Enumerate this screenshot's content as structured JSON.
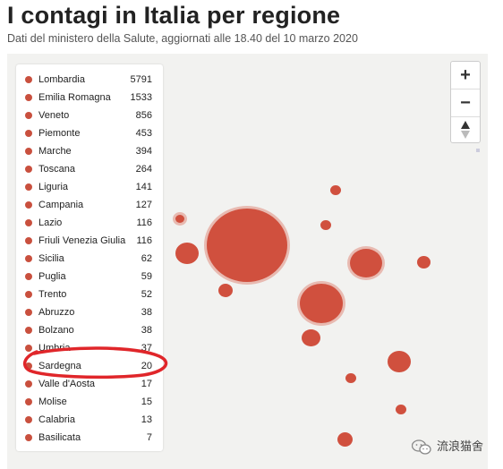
{
  "header": {
    "title": "I contagi in Italia per regione",
    "subtitle": "Dati del ministero della Salute, aggiornati alle 18.40 del 10 marzo 2020"
  },
  "legend": {
    "rows": [
      {
        "name": "Lombardia",
        "value": "5791"
      },
      {
        "name": "Emilia Romagna",
        "value": "1533"
      },
      {
        "name": "Veneto",
        "value": "856"
      },
      {
        "name": "Piemonte",
        "value": "453"
      },
      {
        "name": "Marche",
        "value": "394"
      },
      {
        "name": "Toscana",
        "value": "264"
      },
      {
        "name": "Liguria",
        "value": "141"
      },
      {
        "name": "Campania",
        "value": "127"
      },
      {
        "name": "Lazio",
        "value": "116"
      },
      {
        "name": "Friuli Venezia Giulia",
        "value": "116"
      },
      {
        "name": "Sicilia",
        "value": "62"
      },
      {
        "name": "Puglia",
        "value": "59"
      },
      {
        "name": "Trento",
        "value": "52"
      },
      {
        "name": "Abruzzo",
        "value": "38"
      },
      {
        "name": "Bolzano",
        "value": "38"
      },
      {
        "name": "Umbria",
        "value": "37"
      },
      {
        "name": "Sardegna",
        "value": "20"
      },
      {
        "name": "Valle d'Aosta",
        "value": "17"
      },
      {
        "name": "Molise",
        "value": "15"
      },
      {
        "name": "Calabria",
        "value": "13"
      },
      {
        "name": "Basilicata",
        "value": "7"
      }
    ]
  },
  "zoom": {
    "in_label": "+",
    "out_label": "−",
    "reset_icon": "compass-icon"
  },
  "watermark": {
    "text": "流浪猫舍",
    "icon": "wechat-icon"
  },
  "colors": {
    "bubble": "#d0503e",
    "dot": "#c9503e",
    "annotation": "#e0262a"
  }
}
